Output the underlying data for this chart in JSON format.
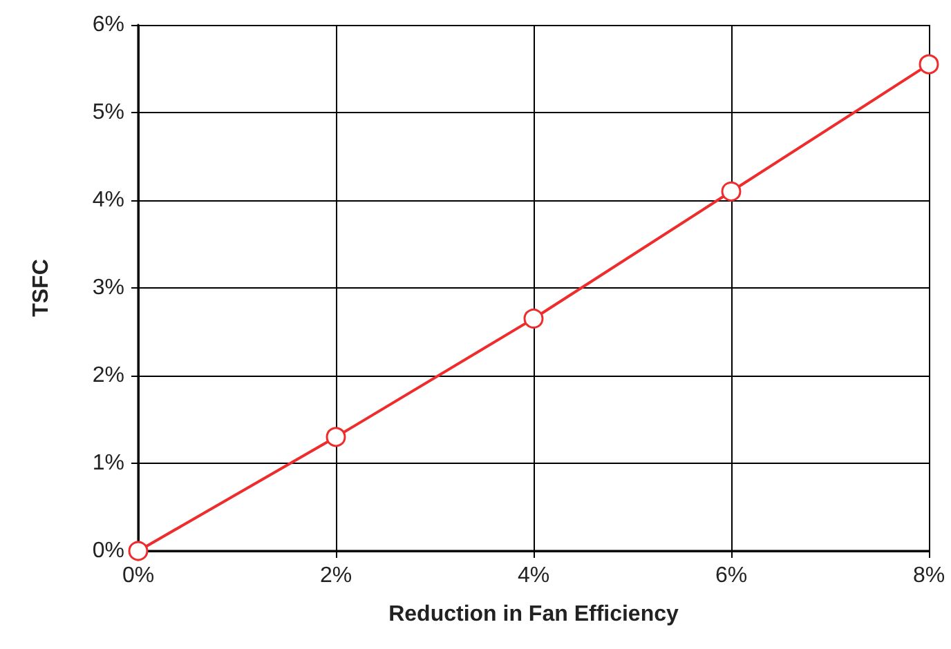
{
  "chart_data": {
    "type": "line",
    "xlabel": "Reduction in Fan Efficiency",
    "ylabel": "TSFC",
    "x": [
      0,
      2,
      4,
      6,
      8
    ],
    "series": [
      {
        "color": "#ee2c2c",
        "values": [
          0,
          1.3,
          2.65,
          4.1,
          5.55
        ]
      }
    ],
    "xlim": [
      0,
      8
    ],
    "xticks": [
      {
        "value": 0,
        "label": "0%"
      },
      {
        "value": 2,
        "label": "2%"
      },
      {
        "value": 4,
        "label": "4%"
      },
      {
        "value": 6,
        "label": "6%"
      },
      {
        "value": 8,
        "label": "8%"
      }
    ],
    "ylim": [
      0,
      6
    ],
    "yticks": [
      {
        "value": 0,
        "label": "0%"
      },
      {
        "value": 1,
        "label": "1%"
      },
      {
        "value": 2,
        "label": "2%"
      },
      {
        "value": 3,
        "label": "3%"
      },
      {
        "value": 4,
        "label": "4%"
      },
      {
        "value": 5,
        "label": "5%"
      },
      {
        "value": 6,
        "label": "6%"
      }
    ],
    "grid": true,
    "marker": "circle",
    "line_style": "solid"
  }
}
